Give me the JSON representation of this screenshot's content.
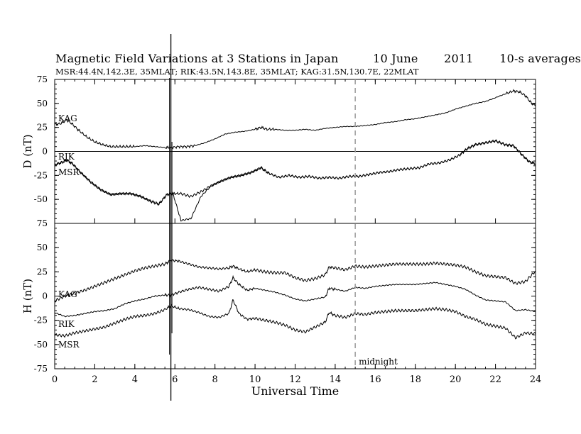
{
  "header": {
    "title": "Magnetic Field Variations at 3 Stations in Japan",
    "date": "10 June",
    "year": "2011",
    "averaging": "10-s averages",
    "stations_line": "MSR:44.4N,142.3E, 35MLAT;   RIK:43.5N,143.8E, 35MLAT;   KAG:31.5N,130.7E, 22MLAT"
  },
  "chart_data": [
    {
      "type": "line",
      "panel": "top",
      "ylabel": "D (nT)",
      "ylim": [
        -75,
        75
      ],
      "yticks": [
        75,
        50,
        25,
        0,
        -25,
        -50,
        -75
      ],
      "xlim": [
        0,
        24
      ],
      "zero_line": true,
      "series": [
        {
          "name": "KAG",
          "x": [
            0,
            0.3,
            0.6,
            0.9,
            1.2,
            1.6,
            2.0,
            2.4,
            2.8,
            3.2,
            3.6,
            4.0,
            4.5,
            5.0,
            5.5,
            5.8,
            6.2,
            6.6,
            7.0,
            7.5,
            8.0,
            8.5,
            9.0,
            9.5,
            10.0,
            10.3,
            10.6,
            11.0,
            11.5,
            12.0,
            12.5,
            13.0,
            13.5,
            14.0,
            14.5,
            15.0,
            15.5,
            16.0,
            16.5,
            17.0,
            17.5,
            18.0,
            18.5,
            19.0,
            19.5,
            20.0,
            20.5,
            21.0,
            21.5,
            22.0,
            22.5,
            22.9,
            23.2,
            23.5,
            23.8,
            24.0
          ],
          "values": [
            28,
            29,
            33,
            28,
            22,
            15,
            10,
            7,
            5,
            5,
            5,
            5,
            6,
            5,
            4,
            4,
            5,
            5,
            6,
            9,
            13,
            18,
            20,
            21,
            23,
            25,
            23,
            23,
            22,
            22,
            23,
            22,
            24,
            25,
            26,
            26,
            27,
            28,
            30,
            31,
            33,
            34,
            36,
            38,
            40,
            44,
            47,
            50,
            52,
            56,
            60,
            63,
            62,
            58,
            50,
            48
          ]
        },
        {
          "name": "RIK",
          "x": [
            0,
            0.4,
            0.6,
            0.9,
            1.3,
            1.8,
            2.3,
            2.8,
            3.3,
            3.8,
            4.3,
            4.8,
            5.2,
            5.6,
            5.9,
            6.3,
            6.8,
            7.3,
            7.8,
            8.3,
            8.8,
            9.3,
            9.8,
            10.3,
            10.7,
            11.2,
            11.7,
            12.2,
            12.7,
            13.2,
            13.7,
            14.2,
            14.7,
            15.2,
            15.7,
            16.2,
            16.7,
            17.2,
            17.7,
            18.2,
            18.7,
            19.2,
            19.7,
            20.2,
            20.6,
            21.0,
            21.5,
            22.0,
            22.5,
            22.9,
            23.3,
            23.7,
            24.0
          ],
          "values": [
            -14,
            -11,
            -9,
            -13,
            -22,
            -32,
            -40,
            -45,
            -44,
            -44,
            -47,
            -52,
            -55,
            -45,
            -44,
            -44,
            -47,
            -42,
            -36,
            -31,
            -27,
            -25,
            -22,
            -17,
            -23,
            -27,
            -25,
            -27,
            -26,
            -28,
            -27,
            -28,
            -26,
            -26,
            -24,
            -22,
            -21,
            -19,
            -18,
            -17,
            -13,
            -12,
            -9,
            -4,
            3,
            7,
            9,
            11,
            7,
            6,
            -3,
            -11,
            -13
          ]
        },
        {
          "name": "MSR",
          "x": [
            0,
            0.4,
            0.6,
            0.9,
            1.3,
            1.8,
            2.3,
            2.8,
            3.3,
            3.8,
            4.3,
            4.8,
            5.2,
            5.6,
            5.9,
            6.3,
            6.8,
            7.3,
            7.8,
            8.3,
            8.8,
            9.3,
            9.8,
            10.3,
            10.7,
            11.2,
            11.7,
            12.2,
            12.7,
            13.2,
            13.7,
            14.2,
            14.7,
            15.2,
            15.7,
            16.2,
            16.7,
            17.2,
            17.7,
            18.2,
            18.7,
            19.2,
            19.7,
            20.2,
            20.6,
            21.0,
            21.5,
            22.0,
            22.5,
            22.9,
            23.3,
            23.7,
            24.0
          ],
          "values": [
            -14,
            -11,
            -9,
            -13,
            -22,
            -32,
            -40,
            -45,
            -44,
            -44,
            -47,
            -52,
            -55,
            -45,
            -44,
            -72,
            -70,
            -47,
            -36,
            -31,
            -27,
            -25,
            -22,
            -17,
            -23,
            -27,
            -25,
            -27,
            -26,
            -28,
            -27,
            -28,
            -26,
            -26,
            -24,
            -22,
            -21,
            -19,
            -18,
            -17,
            -13,
            -12,
            -9,
            -4,
            3,
            7,
            9,
            11,
            7,
            6,
            -3,
            -11,
            -13
          ]
        }
      ]
    },
    {
      "type": "line",
      "panel": "bottom",
      "ylabel": "H (nT)",
      "xlabel": "Universal Time",
      "ylim": [
        -75,
        75
      ],
      "yticks": [
        75,
        50,
        25,
        0,
        -25,
        -50,
        -75
      ],
      "xlim": [
        0,
        24
      ],
      "xticks": [
        0,
        2,
        4,
        6,
        8,
        10,
        12,
        14,
        16,
        18,
        20,
        22,
        24
      ],
      "series": [
        {
          "name": "KAG",
          "x": [
            0,
            0.5,
            1.0,
            1.5,
            2.0,
            2.5,
            3.0,
            3.5,
            4.0,
            4.5,
            5.0,
            5.5,
            5.8,
            6.2,
            6.7,
            7.2,
            7.7,
            8.2,
            8.7,
            8.9,
            9.2,
            9.6,
            10.0,
            10.5,
            11.0,
            11.5,
            12.0,
            12.5,
            13.0,
            13.5,
            13.7,
            14.0,
            14.5,
            15.0,
            15.5,
            16.0,
            16.5,
            17.0,
            17.5,
            18.0,
            18.5,
            19.0,
            19.5,
            20.0,
            20.5,
            21.0,
            21.5,
            22.0,
            22.5,
            23.0,
            23.5,
            24.0
          ],
          "values": [
            -5,
            0,
            3,
            6,
            10,
            14,
            18,
            22,
            26,
            29,
            31,
            33,
            37,
            36,
            33,
            30,
            29,
            28,
            29,
            31,
            28,
            25,
            27,
            25,
            24,
            24,
            19,
            16,
            18,
            22,
            30,
            29,
            27,
            31,
            30,
            31,
            32,
            33,
            33,
            33,
            33,
            34,
            33,
            32,
            30,
            25,
            21,
            20,
            19,
            13,
            15,
            26
          ]
        },
        {
          "name": "RIK",
          "x": [
            0,
            0.5,
            1.0,
            1.5,
            2.0,
            2.5,
            3.0,
            3.5,
            4.0,
            4.5,
            5.0,
            5.5,
            5.8,
            6.2,
            6.7,
            7.2,
            7.7,
            8.2,
            8.7,
            8.9,
            9.2,
            9.6,
            10.0,
            10.5,
            11.0,
            11.5,
            12.0,
            12.5,
            13.0,
            13.5,
            13.7,
            14.0,
            14.5,
            15.0,
            15.5,
            16.0,
            16.5,
            17.0,
            17.5,
            18.0,
            18.5,
            19.0,
            19.5,
            20.0,
            20.5,
            21.0,
            21.5,
            22.0,
            22.5,
            23.0,
            23.5,
            24.0
          ],
          "values": [
            -17,
            -21,
            -20,
            -18,
            -16,
            -15,
            -13,
            -8,
            -5,
            -3,
            0,
            1,
            1,
            4,
            7,
            9,
            7,
            5,
            10,
            19,
            12,
            6,
            8,
            6,
            4,
            1,
            -3,
            -5,
            -3,
            -1,
            8,
            7,
            5,
            9,
            8,
            10,
            11,
            12,
            12,
            12,
            13,
            14,
            12,
            10,
            7,
            1,
            -4,
            -5,
            -6,
            -15,
            -14,
            -16
          ]
        },
        {
          "name": "MSR",
          "x": [
            0,
            0.5,
            1.0,
            1.5,
            2.0,
            2.5,
            3.0,
            3.5,
            4.0,
            4.5,
            5.0,
            5.5,
            5.8,
            6.2,
            6.7,
            7.2,
            7.7,
            8.2,
            8.7,
            8.9,
            9.2,
            9.6,
            10.0,
            10.5,
            11.0,
            11.5,
            12.0,
            12.5,
            13.0,
            13.5,
            13.7,
            14.0,
            14.5,
            15.0,
            15.5,
            16.0,
            16.5,
            17.0,
            17.5,
            18.0,
            18.5,
            19.0,
            19.5,
            20.0,
            20.5,
            21.0,
            21.5,
            22.0,
            22.5,
            23.0,
            23.5,
            24.0
          ],
          "values": [
            -40,
            -41,
            -38,
            -36,
            -34,
            -32,
            -28,
            -24,
            -21,
            -20,
            -18,
            -14,
            -10,
            -13,
            -14,
            -17,
            -21,
            -22,
            -18,
            -4,
            -18,
            -24,
            -23,
            -25,
            -27,
            -30,
            -35,
            -37,
            -32,
            -27,
            -17,
            -20,
            -22,
            -18,
            -19,
            -17,
            -16,
            -15,
            -15,
            -15,
            -14,
            -13,
            -14,
            -16,
            -21,
            -24,
            -29,
            -31,
            -33,
            -43,
            -38,
            -39
          ]
        }
      ]
    }
  ],
  "series_labels": {
    "kag": "KAG",
    "rik": "RIK",
    "msr": "MSR"
  },
  "annotations": {
    "midnight_label": "midnight",
    "midnight_x": 15,
    "spike_x": 5.8,
    "midnight_color": "#9a9a9a"
  }
}
